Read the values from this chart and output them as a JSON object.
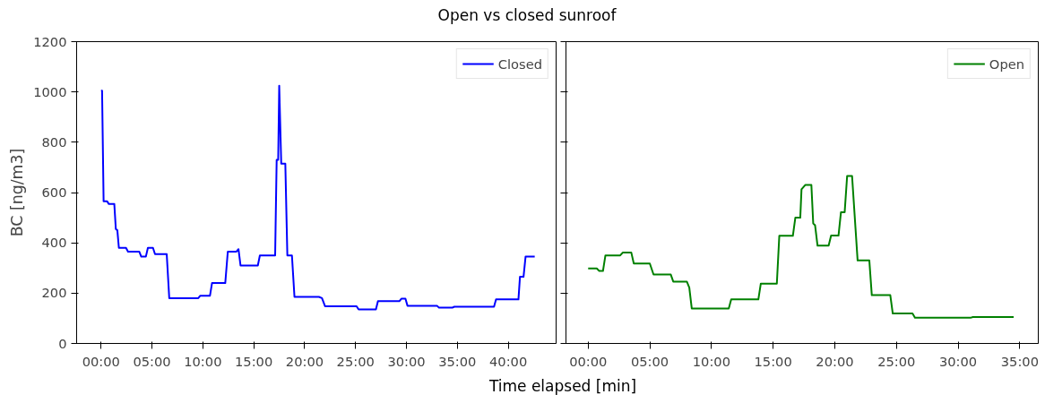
{
  "chart_data": [
    {
      "type": "line",
      "title": "Open vs closed sunroof",
      "xlabel": "Time elapsed [min]",
      "ylabel": "BC [ng/m3]",
      "xlim": [
        -2.4,
        44.7
      ],
      "ylim": [
        0,
        1200
      ],
      "xticks": [
        {
          "value": 0,
          "label": "00:00"
        },
        {
          "value": 5,
          "label": "05:00"
        },
        {
          "value": 10,
          "label": "10:00"
        },
        {
          "value": 15,
          "label": "15:00"
        },
        {
          "value": 20,
          "label": "20:00"
        },
        {
          "value": 25,
          "label": "25:00"
        },
        {
          "value": 30,
          "label": "30:00"
        },
        {
          "value": 35,
          "label": "35:00"
        },
        {
          "value": 40,
          "label": "40:00"
        }
      ],
      "yticks": [
        0,
        200,
        400,
        600,
        800,
        1000,
        1200
      ],
      "grid": false,
      "legend": "top right",
      "series": [
        {
          "name": "Closed",
          "color": "#0000ff",
          "x": [
            0,
            0.1,
            0.25,
            0.6,
            0.75,
            1.3,
            1.45,
            1.6,
            1.75,
            2.45,
            2.65,
            3.75,
            3.95,
            4.4,
            4.6,
            5.1,
            5.3,
            6.45,
            6.7,
            9.55,
            9.75,
            10.7,
            10.9,
            12.2,
            12.45,
            13.3,
            13.5,
            13.7,
            15.4,
            15.6,
            17.1,
            17.25,
            17.4,
            17.5,
            17.7,
            18.1,
            18.3,
            18.75,
            19.0,
            21.4,
            21.7,
            22.0,
            25.1,
            25.3,
            27.0,
            27.2,
            29.3,
            29.5,
            29.9,
            30.1,
            33.0,
            33.2,
            34.5,
            34.7,
            38.6,
            38.8,
            41.0,
            41.15,
            41.5,
            41.7,
            42.6
          ],
          "values": [
            1005,
            1005,
            565,
            565,
            555,
            555,
            455,
            450,
            380,
            380,
            365,
            365,
            345,
            345,
            380,
            380,
            355,
            355,
            180,
            180,
            190,
            190,
            240,
            240,
            365,
            365,
            375,
            310,
            310,
            350,
            350,
            730,
            730,
            1025,
            715,
            715,
            350,
            350,
            185,
            185,
            180,
            148,
            148,
            135,
            135,
            168,
            168,
            178,
            178,
            150,
            150,
            142,
            142,
            146,
            146,
            175,
            175,
            265,
            265,
            345,
            345
          ]
        }
      ]
    },
    {
      "type": "line",
      "xlim": [
        -1.8,
        36.5
      ],
      "ylim": [
        0,
        1200
      ],
      "xticks": [
        {
          "value": 0,
          "label": "00:00"
        },
        {
          "value": 5,
          "label": "05:00"
        },
        {
          "value": 10,
          "label": "10:00"
        },
        {
          "value": 15,
          "label": "15:00"
        },
        {
          "value": 20,
          "label": "20:00"
        },
        {
          "value": 25,
          "label": "25:00"
        },
        {
          "value": 30,
          "label": "30:00"
        },
        {
          "value": 35,
          "label": "35:00"
        }
      ],
      "yticks": [
        0,
        200,
        400,
        600,
        800,
        1000,
        1200
      ],
      "tick_labels": "x",
      "grid": false,
      "legend": "top right",
      "series": [
        {
          "name": "Open",
          "color": "#008000",
          "x": [
            0,
            0.7,
            0.9,
            1.2,
            1.4,
            2.6,
            2.8,
            3.5,
            3.7,
            5.0,
            5.3,
            6.7,
            6.9,
            8.0,
            8.2,
            8.4,
            11.4,
            11.6,
            13.8,
            14.0,
            15.3,
            15.5,
            16.6,
            16.8,
            17.2,
            17.3,
            17.6,
            18.1,
            18.25,
            18.4,
            18.6,
            19.5,
            19.7,
            20.3,
            20.5,
            20.8,
            21.0,
            21.4,
            21.85,
            22.8,
            23.0,
            24.5,
            24.7,
            26.3,
            26.5,
            31.0,
            31.2,
            34.5
          ],
          "values": [
            298,
            298,
            288,
            288,
            350,
            350,
            361,
            361,
            318,
            318,
            274,
            274,
            246,
            246,
            222,
            139,
            139,
            175,
            175,
            238,
            238,
            428,
            428,
            500,
            500,
            613,
            630,
            630,
            477,
            470,
            389,
            389,
            429,
            429,
            522,
            522,
            666,
            666,
            330,
            330,
            192,
            192,
            119,
            119,
            102,
            102,
            105,
            105
          ]
        }
      ]
    }
  ]
}
